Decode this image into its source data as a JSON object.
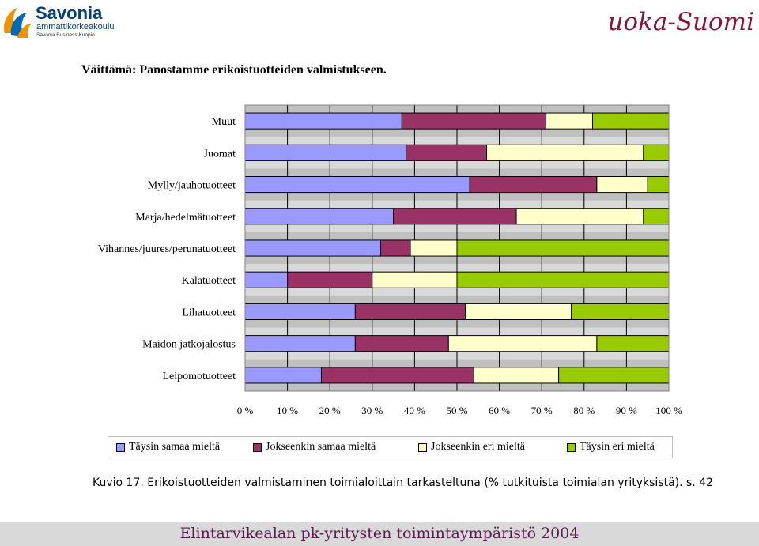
{
  "header": {
    "left_logo": {
      "name": "Savonia",
      "line1": "ammattikorkeakoulu",
      "line2": "Savonia Business Kuopio"
    },
    "right_logo": "Ruoka-Suomi"
  },
  "title": "Väittämä: Panostamme erikoistuotteiden valmistukseen.",
  "chart_data": {
    "type": "bar",
    "orientation": "horizontal",
    "stacked": "percent",
    "categories": [
      "Muut",
      "Juomat",
      "Mylly/jauhotuotteet",
      "Marja/hedelmätuotteet",
      "Vihannes/juures/perunatuotteet",
      "Kalatuotteet",
      "Lihatuotteet",
      "Maidon jatkojalostus",
      "Leipomotuotteet"
    ],
    "series": [
      {
        "name": "Täysin samaa mieltä",
        "color": "#9999ff",
        "values": [
          37,
          38,
          53,
          35,
          32,
          10,
          26,
          26,
          18
        ]
      },
      {
        "name": "Jokseenkin samaa mieltä",
        "color": "#993366",
        "values": [
          34,
          19,
          30,
          29,
          7,
          20,
          26,
          22,
          36
        ]
      },
      {
        "name": "Jokseenkin eri mieltä",
        "color": "#ffffcc",
        "values": [
          11,
          37,
          12,
          30,
          11,
          20,
          25,
          35,
          20
        ]
      },
      {
        "name": "Täysin eri mieltä",
        "color": "#99cc00",
        "values": [
          18,
          6,
          5,
          6,
          50,
          50,
          23,
          17,
          26
        ]
      }
    ],
    "xlim": [
      0,
      100
    ],
    "xticks": [
      "0 %",
      "10 %",
      "20 %",
      "30 %",
      "40 %",
      "50 %",
      "60 %",
      "70 %",
      "80 %",
      "90 %",
      "100 %"
    ],
    "grid": true,
    "legend_position": "bottom"
  },
  "caption": {
    "label": "Kuvio 17",
    "text": ". Erikoistuotteiden valmistaminen toimialoittain tarkasteltuna (% tutkituista toimialan yrityksistä). s. 42"
  },
  "footer": "Elintarvikealan pk-yritysten toimintaympäristö 2004"
}
